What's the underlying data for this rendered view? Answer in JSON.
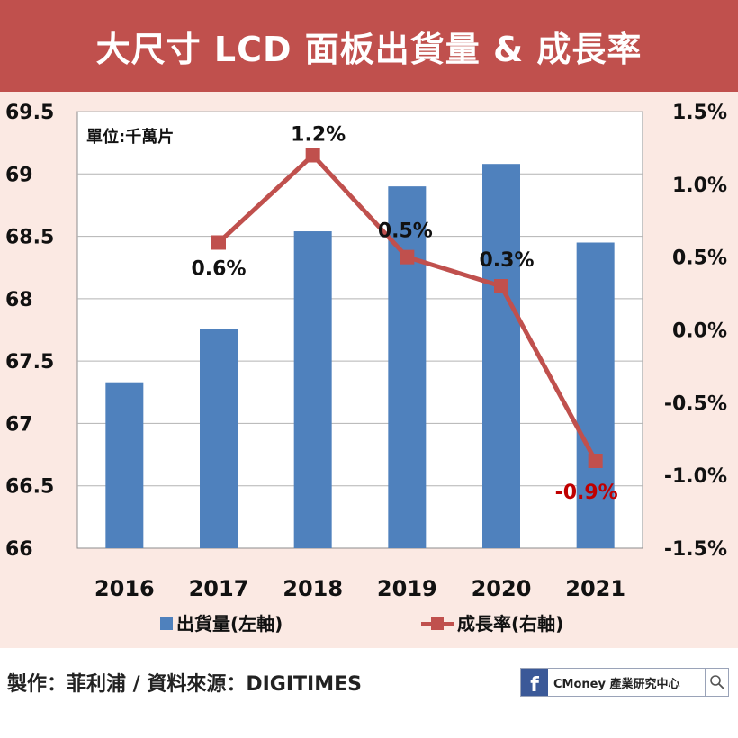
{
  "header": {
    "title": "大尺寸 LCD 面板出貨量 & 成長率"
  },
  "footer": {
    "credit": "製作：菲利浦 / 資料來源：DIGITIMES",
    "brand_label": "CMoney 產業研究中心"
  },
  "icons": {
    "brand_logo": "facebook-icon",
    "search": "search-icon"
  },
  "colors": {
    "title_bg": "#c0504d",
    "panel_bg": "#fbe9e3",
    "bar": "#4f81bd",
    "line": "#c0504d",
    "negative_label": "#c00000"
  },
  "chart_data": {
    "type": "bar",
    "title": "",
    "unit_note": "單位:千萬片",
    "categories": [
      "2016",
      "2017",
      "2018",
      "2019",
      "2020",
      "2021"
    ],
    "series": [
      {
        "name": "出貨量(左軸)",
        "type": "bar",
        "axis": "left",
        "values": [
          67.33,
          67.76,
          68.54,
          68.9,
          69.08,
          68.45
        ]
      },
      {
        "name": "成長率(右軸)",
        "type": "line",
        "axis": "right",
        "values": [
          null,
          0.6,
          1.2,
          0.5,
          0.3,
          -0.9
        ]
      }
    ],
    "point_labels": [
      "",
      "0.6%",
      "1.2%",
      "0.5%",
      "0.3%",
      "-0.9%"
    ],
    "left_axis": {
      "min": 66,
      "max": 69.5,
      "ticks": [
        "66",
        "66.5",
        "67",
        "67.5",
        "68",
        "68.5",
        "69",
        "69.5"
      ]
    },
    "right_axis": {
      "min": -1.5,
      "max": 1.5,
      "ticks": [
        "-1.5%",
        "-1.0%",
        "-0.5%",
        "0.0%",
        "0.5%",
        "1.0%",
        "1.5%"
      ]
    },
    "grid": true,
    "legend_position": "bottom"
  }
}
